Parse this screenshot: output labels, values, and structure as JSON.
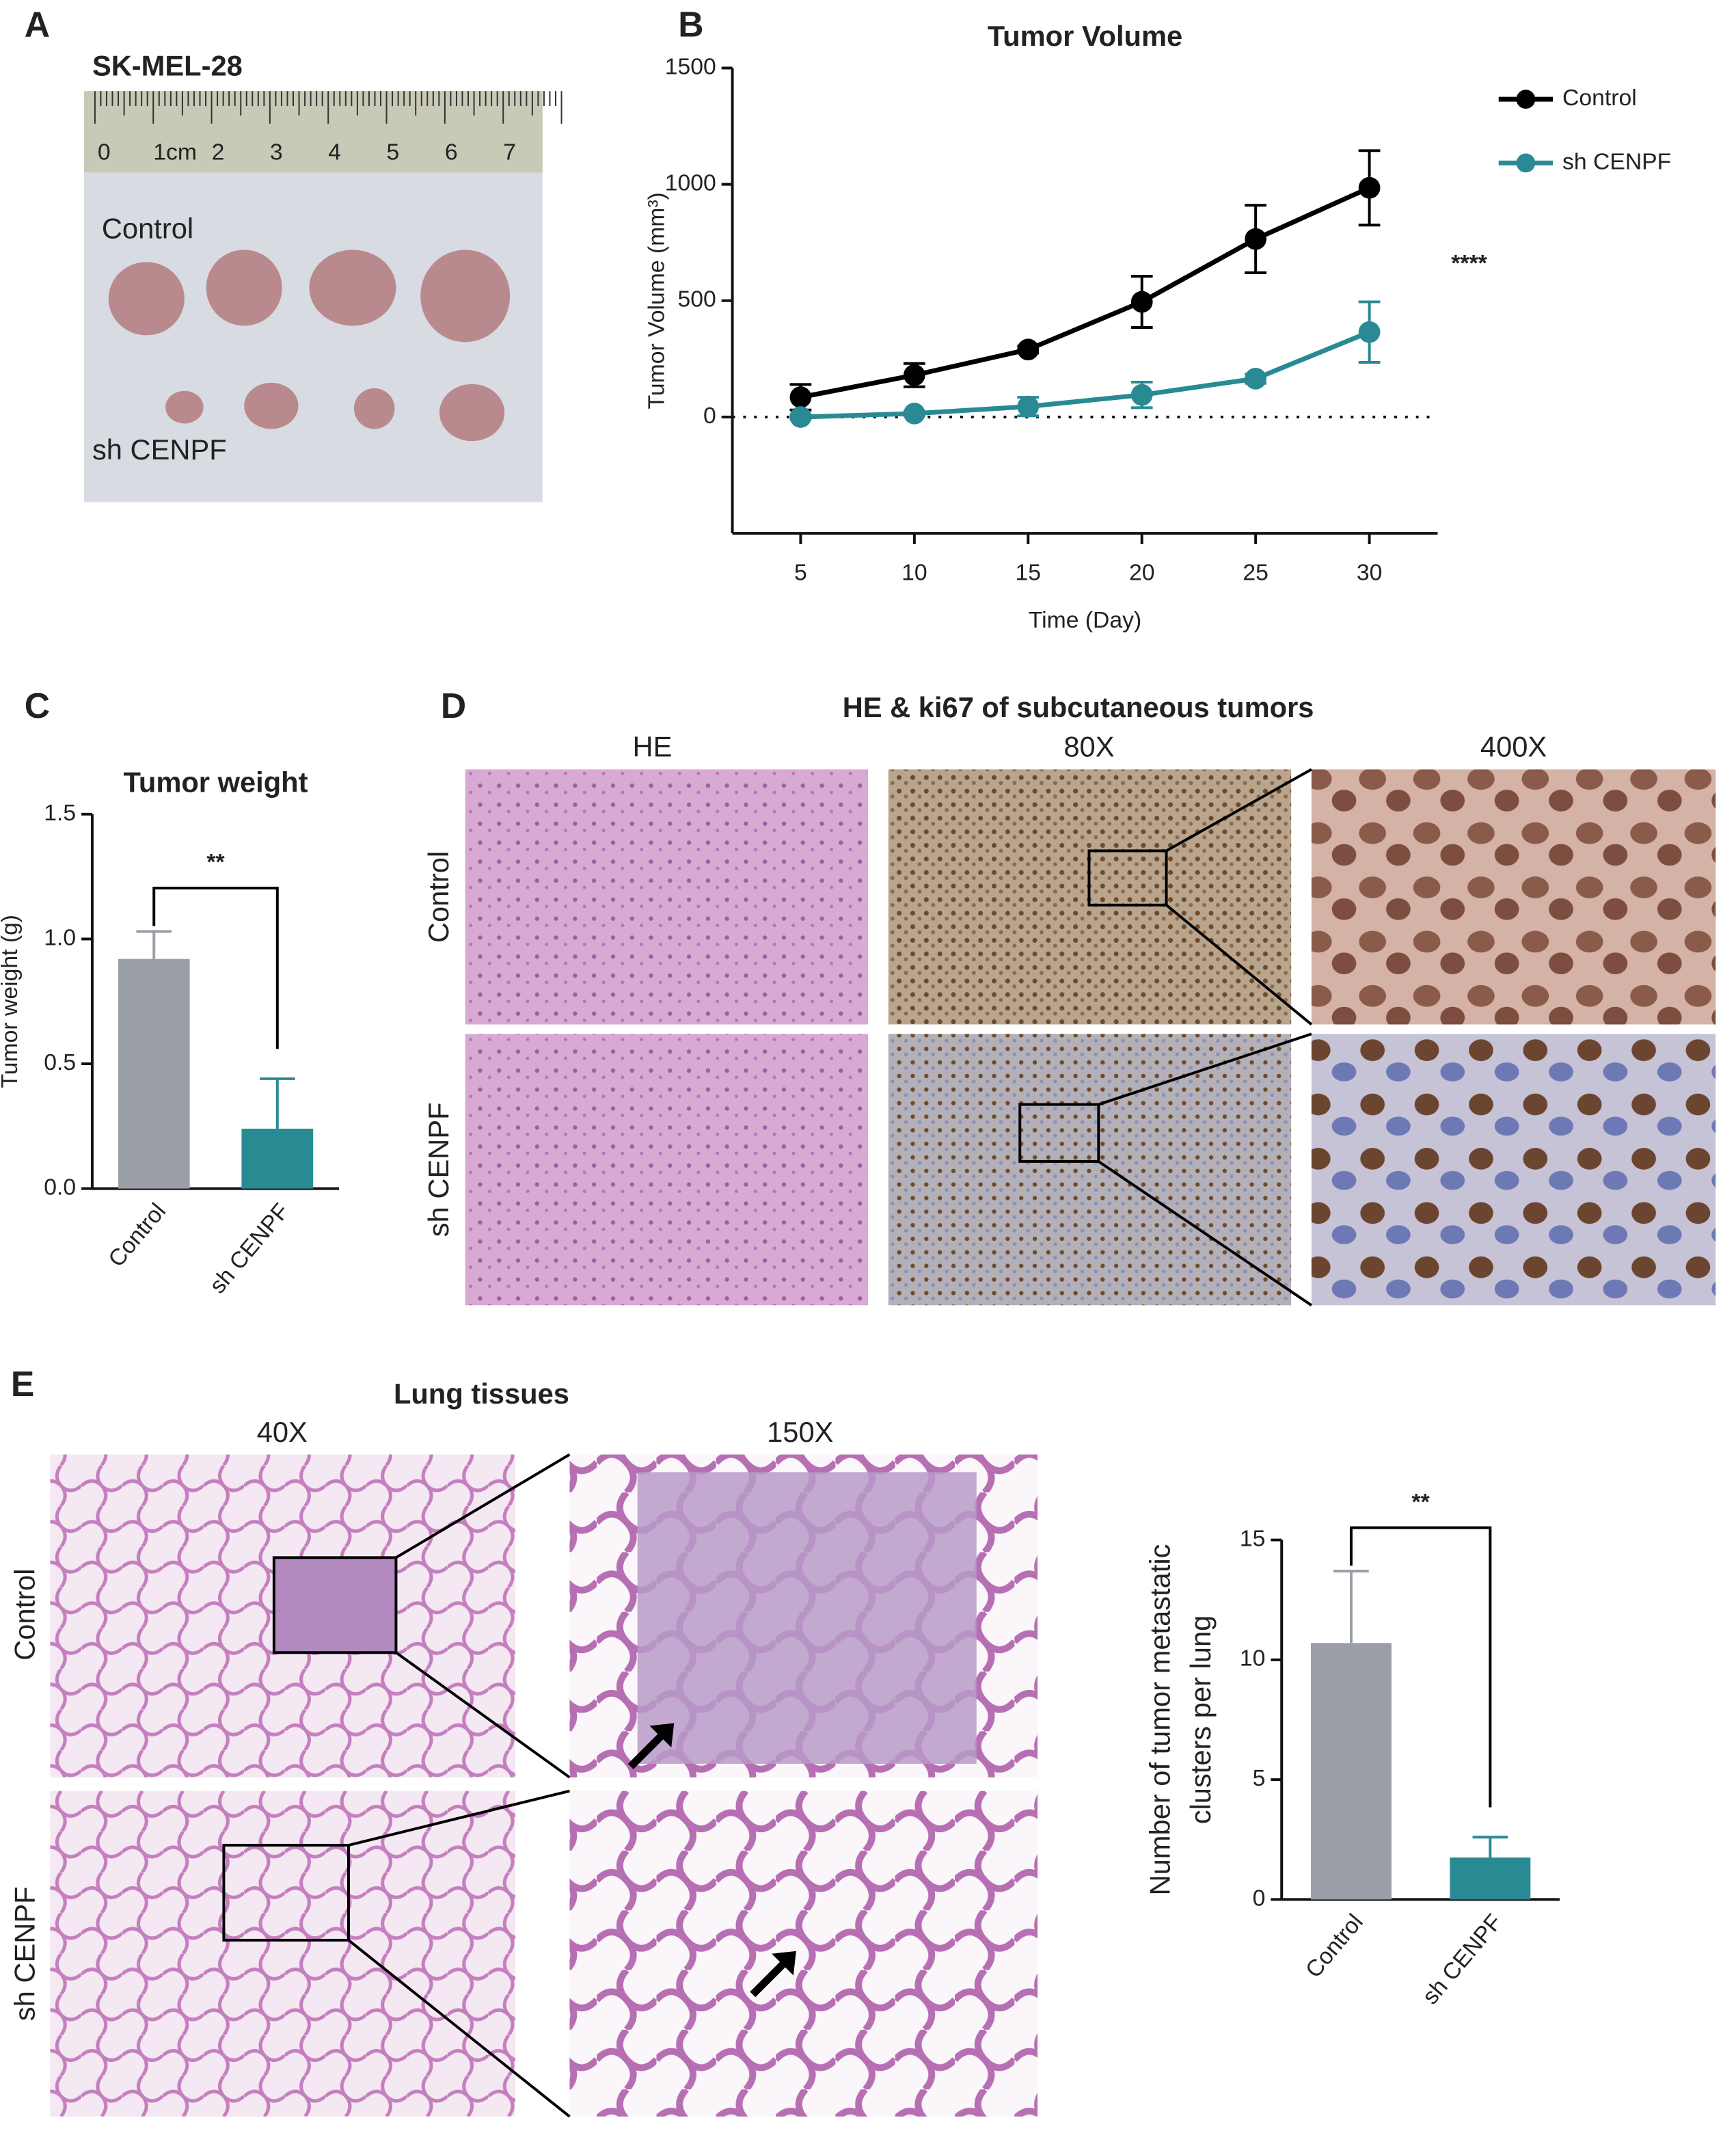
{
  "panels": {
    "labels": [
      "A",
      "B",
      "C",
      "D",
      "E"
    ],
    "a": {
      "title": "SK-MEL-28",
      "ruler": [
        "0",
        "1cm",
        "2",
        "3",
        "4",
        "5",
        "6",
        "7"
      ],
      "rows": [
        "Control",
        "sh CENPF"
      ]
    },
    "d": {
      "title": "HE & ki67 of subcutaneous tumors",
      "columns": [
        "HE",
        "80X",
        "400X"
      ],
      "rows": [
        "Control",
        "sh CENPF"
      ]
    },
    "e": {
      "title": "Lung tissues",
      "columns": [
        "40X",
        "150X"
      ],
      "rows": [
        "Control",
        "sh CENPF"
      ]
    }
  },
  "chart_data": [
    {
      "type": "line",
      "title": "Tumor Volume",
      "xlabel": "Time (Day)",
      "ylabel": "Tumor Volume (mm³)",
      "x": [
        5,
        10,
        15,
        20,
        25,
        30
      ],
      "series": [
        {
          "name": "Control",
          "color": "#000000",
          "values": [
            85,
            180,
            290,
            495,
            765,
            985
          ],
          "errors": [
            55,
            50,
            15,
            110,
            145,
            160
          ]
        },
        {
          "name": "sh CENPF",
          "color": "#2a8a94",
          "values": [
            0,
            15,
            45,
            95,
            165,
            365
          ],
          "errors": [
            10,
            10,
            40,
            55,
            20,
            130
          ]
        }
      ],
      "xlim": [
        2,
        33
      ],
      "xticks": [
        5,
        10,
        15,
        20,
        25,
        30
      ],
      "ylim": [
        -500,
        1500
      ],
      "yticks": [
        0,
        500,
        1000,
        1500
      ],
      "zero_line": true,
      "legend": "upper right",
      "annotation": "****"
    },
    {
      "type": "bar",
      "title": "Tumor weight",
      "ylabel": "Tumor weight (g)",
      "categories": [
        "Control",
        "sh CENPF"
      ],
      "values": [
        0.92,
        0.24
      ],
      "errors": [
        0.11,
        0.2
      ],
      "colors": [
        "#9a9ea6",
        "#2a8a94"
      ],
      "ylim": [
        0,
        1.5
      ],
      "yticks": [
        {
          "value": 0,
          "label": "0.0"
        },
        0.5,
        {
          "value": 1,
          "label": "1.0"
        },
        1.5
      ],
      "annotation": "**"
    },
    {
      "type": "bar",
      "ylabel": [
        "Number of tumor metastatic",
        "clusters per lung"
      ],
      "categories": [
        "Control",
        "sh CENPF"
      ],
      "values": [
        10.7,
        1.75
      ],
      "errors": [
        3.0,
        0.85
      ],
      "colors": [
        "#9a9ea6",
        "#2a8a94"
      ],
      "ylim": [
        0,
        15
      ],
      "yticks": [
        0,
        5,
        10,
        15
      ],
      "annotation": "**"
    }
  ]
}
